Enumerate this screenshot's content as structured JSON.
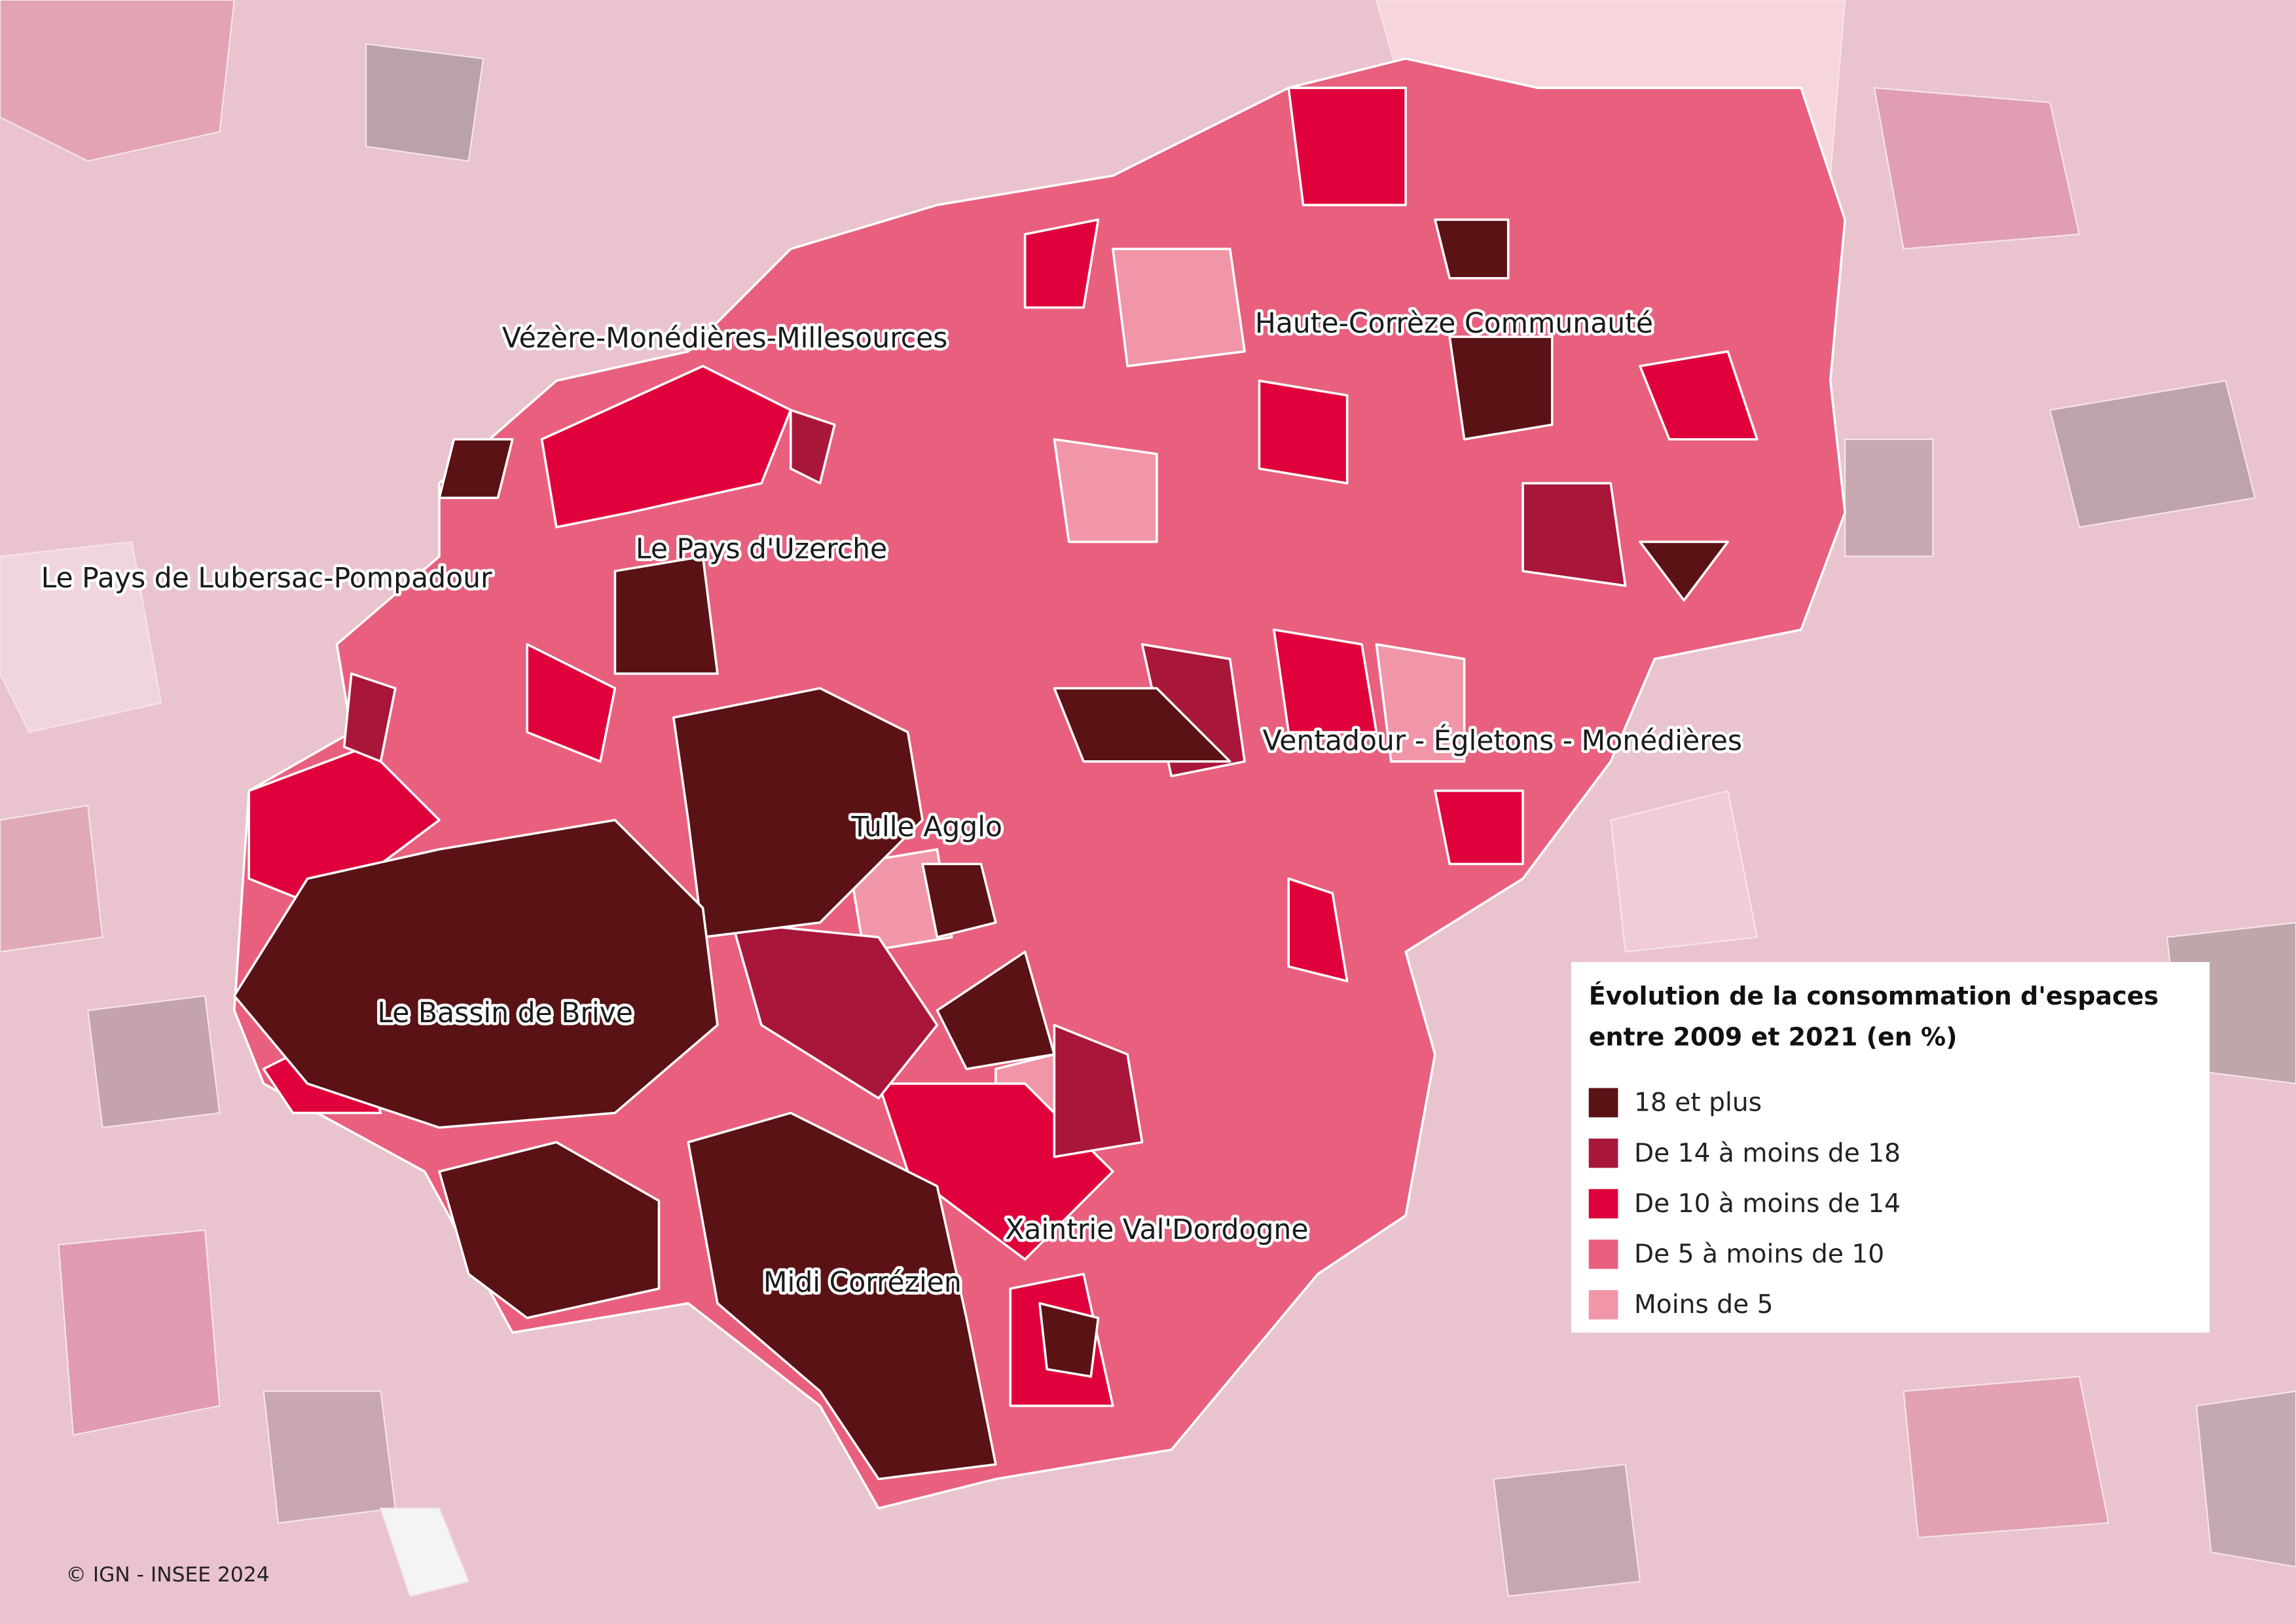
{
  "map": {
    "labels": [
      {
        "text": "Vézère-Monédières-Millesources",
        "at": "center"
      },
      {
        "text": "Haute-Corrèze Communauté",
        "at": "center"
      },
      {
        "text": "Le Pays de Lubersac-Pompadour",
        "at": "center"
      },
      {
        "text": "Le Pays d'Uzerche",
        "at": "center"
      },
      {
        "text": "Ventadour - Égletons - Monédières",
        "at": "center"
      },
      {
        "text": "Tulle Agglo",
        "at": "center"
      },
      {
        "text": "Le Bassin de Brive",
        "at": "center"
      },
      {
        "text": "Xaintrie Val'Dordogne",
        "at": "center"
      },
      {
        "text": "Midi Corrézien",
        "at": "center"
      }
    ],
    "legend": {
      "title": [
        "Évolution de la consommation d'espaces",
        "entre 2009 et 2021 (en %)"
      ],
      "items": [
        {
          "label": "18 et plus",
          "color": "#5a1215"
        },
        {
          "label": "De 14 à moins de 18",
          "color": "#a8173a"
        },
        {
          "label": "De 10 à moins de 14",
          "color": "#e0003c"
        },
        {
          "label": "De 5 à moins de 10",
          "color": "#e8607e"
        },
        {
          "label": "Moins de 5",
          "color": "#f096a8"
        }
      ]
    },
    "credit": "© IGN - INSEE 2024"
  }
}
